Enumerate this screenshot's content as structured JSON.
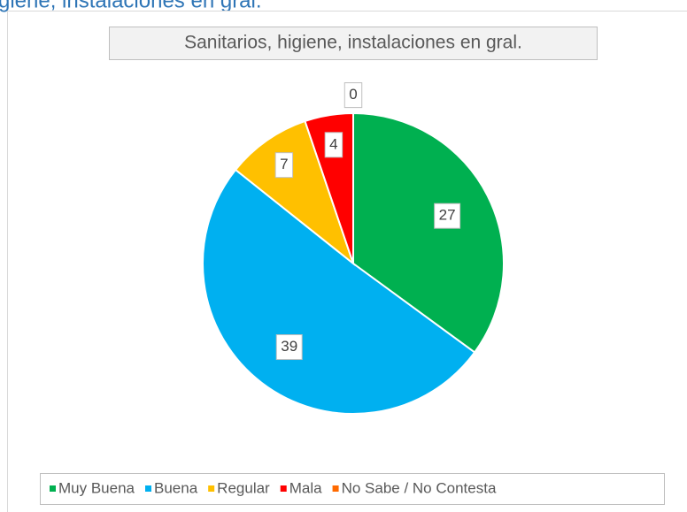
{
  "heading": "giene, instalaciones en gral.",
  "chart_data": {
    "type": "pie",
    "title": "Sanitarios, higiene, instalaciones en gral.",
    "categories": [
      "Muy Buena",
      "Buena",
      "Regular",
      "Mala",
      "No Sabe / No Contesta"
    ],
    "values": [
      27,
      39,
      7,
      4,
      0
    ],
    "colors": [
      "#00b050",
      "#00b0f0",
      "#ffc000",
      "#ff0000",
      "#ff6a00"
    ],
    "legend": "bottom"
  }
}
